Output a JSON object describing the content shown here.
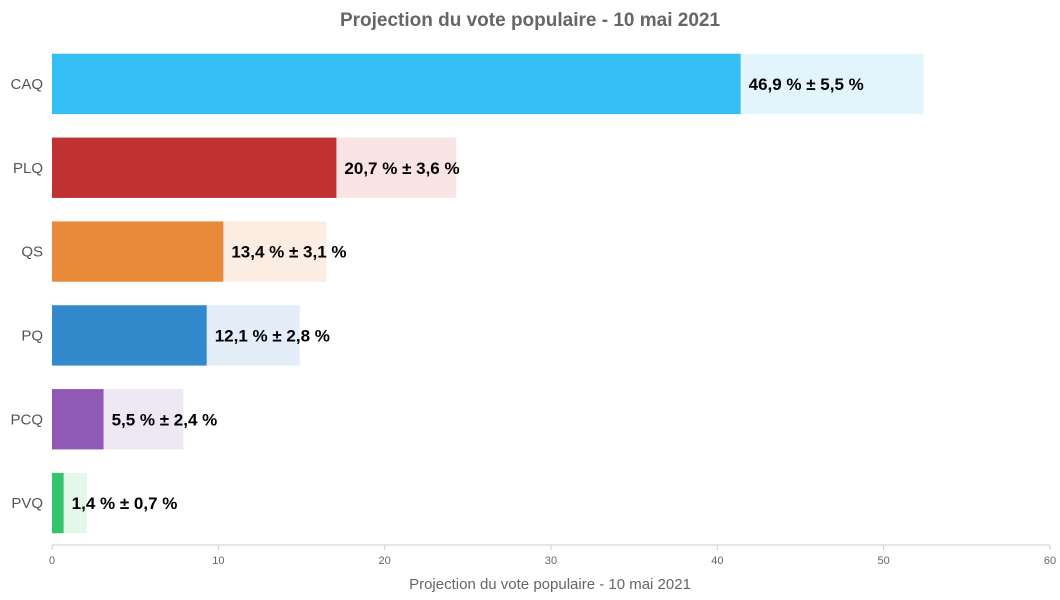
{
  "chart_data": {
    "type": "bar",
    "orientation": "horizontal",
    "title": "Projection du vote populaire - 10 mai 2021",
    "xlabel": "Projection du vote populaire - 10 mai 2021",
    "ylabel": "",
    "xlim": [
      0,
      60
    ],
    "xticks": [
      0,
      10,
      20,
      30,
      40,
      50,
      60
    ],
    "grid": false,
    "legend": "none",
    "categories": [
      "CAQ",
      "PLQ",
      "QS",
      "PQ",
      "PCQ",
      "PVQ"
    ],
    "values": [
      46.9,
      20.7,
      13.4,
      12.1,
      5.5,
      1.4
    ],
    "margins": [
      5.5,
      3.6,
      3.1,
      2.8,
      2.4,
      0.7
    ],
    "data_labels": [
      "46,9 % ± 5,5 %",
      "20,7 % ± 3,6 %",
      "13,4 % ± 3,1 %",
      "12,1 % ± 2,8 %",
      "5,5 % ± 2,4 %",
      "1,4 % ± 0,7 %"
    ],
    "colors": [
      "#33bff3",
      "#c03232",
      "#e98a3b",
      "#3289cc",
      "#8f59b5",
      "#35c46e"
    ],
    "band_colors": [
      "#e2f5fd",
      "#f8e4e4",
      "#fcede2",
      "#e3eef9",
      "#eee7f4",
      "#e4f7ea"
    ]
  }
}
